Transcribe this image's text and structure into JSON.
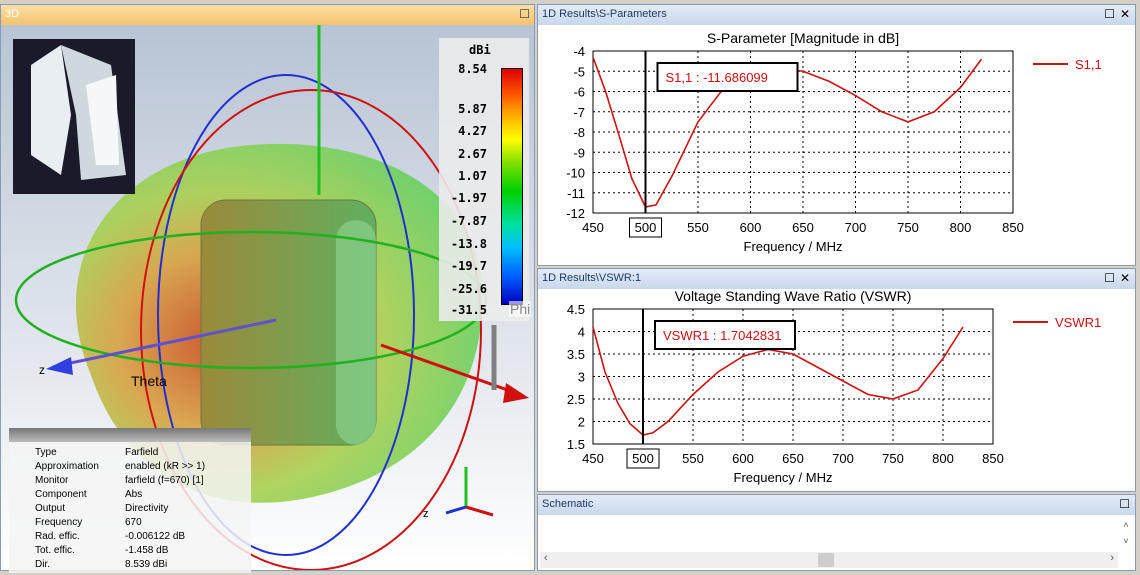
{
  "view3d": {
    "title": "3D",
    "axis_theta": "Theta",
    "axis_phi": "Phi",
    "axis_z": "z",
    "colorbar": {
      "unit": "dBi",
      "ticks": [
        "8.54",
        "5.87",
        "4.27",
        "2.67",
        "1.07",
        "-1.97",
        "-7.87",
        "-13.8",
        "-19.7",
        "-25.6",
        "-31.5"
      ]
    },
    "info": [
      [
        "Type",
        "Farfield"
      ],
      [
        "Approximation",
        "enabled (kR >> 1)"
      ],
      [
        "Monitor",
        "farfield (f=670) [1]"
      ],
      [
        "Component",
        "Abs"
      ],
      [
        "Output",
        "Directivity"
      ],
      [
        "Frequency",
        "670"
      ],
      [
        "Rad. effic.",
        "-0.006122 dB"
      ],
      [
        "Tot. effic.",
        "-1.458 dB"
      ],
      [
        "Dir.",
        "8.539 dBi"
      ]
    ]
  },
  "sparam": {
    "panel_title": "1D Results\\S-Parameters"
  },
  "vswr": {
    "panel_title": "1D Results\\VSWR:1"
  },
  "schematic": {
    "panel_title": "Schematic"
  },
  "chart_data": [
    {
      "type": "line",
      "title": "S-Parameter [Magnitude in dB]",
      "xlabel": "Frequency / MHz",
      "ylabel": "",
      "xlim": [
        450,
        850
      ],
      "ylim": [
        -12,
        -4
      ],
      "xticks": [
        "450",
        "500",
        "550",
        "600",
        "650",
        "700",
        "750",
        "800",
        "850"
      ],
      "yticks": [
        "-4",
        "-5",
        "-6",
        "-7",
        "-8",
        "-9",
        "-10",
        "-11",
        "-12"
      ],
      "series": [
        {
          "name": "S1,1",
          "color": "#d01010",
          "x": [
            450,
            462,
            475,
            487,
            500,
            510,
            525,
            550,
            575,
            600,
            625,
            650,
            675,
            700,
            725,
            750,
            775,
            800,
            820
          ],
          "y": [
            -4.3,
            -6,
            -8.2,
            -10.3,
            -11.7,
            -11.6,
            -10.2,
            -7.5,
            -5.8,
            -5.0,
            -4.85,
            -5.0,
            -5.5,
            -6.2,
            -7.0,
            -7.5,
            -7.0,
            -5.8,
            -4.4
          ]
        }
      ],
      "marker": {
        "x": 500,
        "label": "S1,1 : -11.686099"
      },
      "legend": "right"
    },
    {
      "type": "line",
      "title": "Voltage Standing Wave Ratio (VSWR)",
      "xlabel": "Frequency / MHz",
      "ylabel": "",
      "xlim": [
        450,
        850
      ],
      "ylim": [
        1.5,
        4.5
      ],
      "xticks": [
        "450",
        "500",
        "550",
        "600",
        "650",
        "700",
        "750",
        "800",
        "850"
      ],
      "yticks": [
        "4.5",
        "4",
        "3.5",
        "3",
        "2.5",
        "2",
        "1.5"
      ],
      "series": [
        {
          "name": "VSWR1",
          "color": "#d01010",
          "x": [
            450,
            462,
            475,
            487,
            500,
            510,
            525,
            550,
            575,
            600,
            625,
            650,
            675,
            700,
            725,
            750,
            775,
            800,
            820
          ],
          "y": [
            4.1,
            3.1,
            2.4,
            1.95,
            1.7,
            1.75,
            2.0,
            2.6,
            3.1,
            3.45,
            3.6,
            3.5,
            3.2,
            2.9,
            2.6,
            2.5,
            2.7,
            3.4,
            4.1
          ]
        }
      ],
      "marker": {
        "x": 500,
        "label": "VSWR1 : 1.7042831"
      },
      "legend": "right"
    }
  ]
}
